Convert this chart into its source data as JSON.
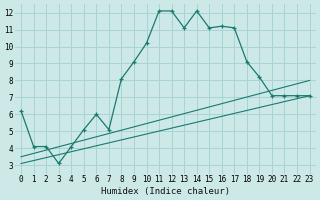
{
  "xlabel": "Humidex (Indice chaleur)",
  "bg_color": "#cce9e8",
  "grid_color": "#a8d4d3",
  "line_color": "#1a7a6e",
  "xlim": [
    -0.5,
    23.5
  ],
  "ylim": [
    2.5,
    12.5
  ],
  "xticks": [
    0,
    1,
    2,
    3,
    4,
    5,
    6,
    7,
    8,
    9,
    10,
    11,
    12,
    13,
    14,
    15,
    16,
    17,
    18,
    19,
    20,
    21,
    22,
    23
  ],
  "yticks": [
    3,
    4,
    5,
    6,
    7,
    8,
    9,
    10,
    11,
    12
  ],
  "main_x": [
    0,
    1,
    2,
    3,
    4,
    5,
    6,
    7,
    8,
    9,
    10,
    11,
    12,
    13,
    14,
    15,
    16,
    17,
    18,
    19,
    20,
    21,
    22,
    23
  ],
  "main_y": [
    6.2,
    4.1,
    4.1,
    3.1,
    4.1,
    5.1,
    6.0,
    5.1,
    8.1,
    9.1,
    10.2,
    12.1,
    12.1,
    11.1,
    12.1,
    11.1,
    11.2,
    11.1,
    9.1,
    8.2,
    7.1,
    7.1,
    7.1,
    7.1
  ],
  "line2_x": [
    0,
    23
  ],
  "line2_y": [
    3.5,
    8.0
  ],
  "line3_x": [
    0,
    23
  ],
  "line3_y": [
    3.1,
    7.1
  ]
}
